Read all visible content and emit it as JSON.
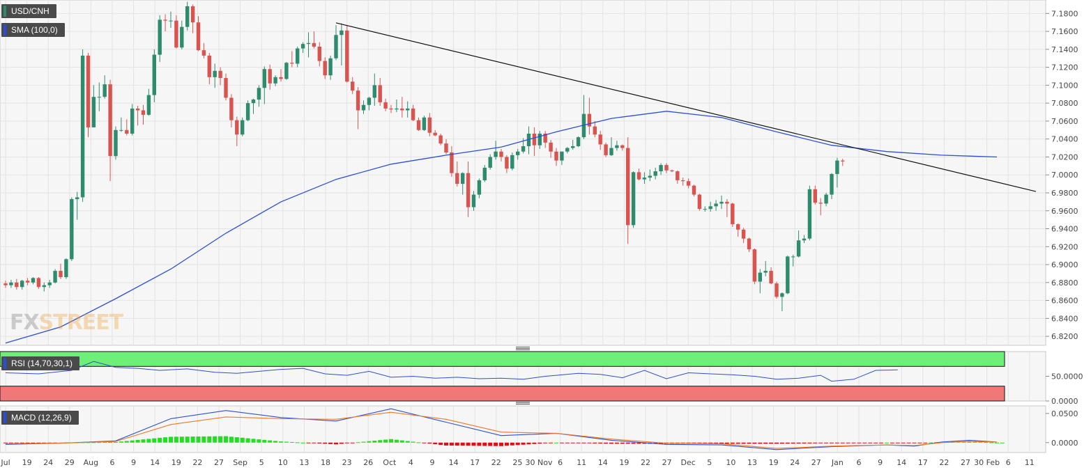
{
  "legend": {
    "symbol": "USD/CNH",
    "sma": "SMA (100,0)",
    "rsi": "RSI (14,70,30,1)",
    "macd": "MACD (12,26,9)"
  },
  "watermark": {
    "part1": "FX",
    "part2": "STREET"
  },
  "colors": {
    "up": "#2e8b6e",
    "down": "#d9534f",
    "sma": "#2a4fd6",
    "rsi_line": "#2a4fd6",
    "overbought": "#6ef078",
    "oversold": "#f07878",
    "macd_line": "#2a4fd6",
    "signal_line": "#f07820",
    "hist_pos": "#22dd22",
    "hist_neg": "#dd1111"
  },
  "chart_data": [
    {
      "type": "candlestick",
      "title": "USD/CNH",
      "ylim": [
        6.81,
        7.195
      ],
      "y_ticks": [
        "7.1800",
        "7.1600",
        "7.1400",
        "7.1200",
        "7.1000",
        "7.0800",
        "7.0600",
        "7.0400",
        "7.0200",
        "7.0000",
        "6.9800",
        "6.9600",
        "6.9400",
        "6.9200",
        "6.9000",
        "6.8800",
        "6.8600",
        "6.8400",
        "6.8200"
      ],
      "x_ticks": [
        "Jul",
        "19",
        "24",
        "29",
        "Aug",
        "6",
        "9",
        "14",
        "19",
        "22",
        "27",
        "Sep",
        "5",
        "10",
        "13",
        "18",
        "23",
        "26",
        "Oct",
        "4",
        "9",
        "14",
        "17",
        "22",
        "25",
        "30 Nov",
        "6",
        "11",
        "14",
        "19",
        "22",
        "27",
        "Dec",
        "5",
        "10",
        "13",
        "19",
        "24",
        "27",
        "Jan",
        "6",
        "9",
        "14",
        "17",
        "22",
        "27",
        "30 Feb",
        "6",
        "11"
      ],
      "candles": [
        [
          6.879,
          6.882,
          6.874,
          6.877
        ],
        [
          6.877,
          6.883,
          6.874,
          6.88
        ],
        [
          6.88,
          6.884,
          6.872,
          6.875
        ],
        [
          6.875,
          6.883,
          6.872,
          6.882
        ],
        [
          6.882,
          6.885,
          6.877,
          6.88
        ],
        [
          6.88,
          6.886,
          6.878,
          6.885
        ],
        [
          6.885,
          6.886,
          6.873,
          6.875
        ],
        [
          6.875,
          6.88,
          6.87,
          6.877
        ],
        [
          6.877,
          6.883,
          6.874,
          6.88
        ],
        [
          6.88,
          6.895,
          6.879,
          6.893
        ],
        [
          6.893,
          6.901,
          6.884,
          6.886
        ],
        [
          6.886,
          6.907,
          6.884,
          6.906
        ],
        [
          6.906,
          6.975,
          6.904,
          6.973
        ],
        [
          6.973,
          6.981,
          6.95,
          6.975
        ],
        [
          6.975,
          7.14,
          6.97,
          7.133
        ],
        [
          7.133,
          7.136,
          7.042,
          7.053
        ],
        [
          7.053,
          7.1,
          7.053,
          7.087
        ],
        [
          7.087,
          7.103,
          7.071,
          7.087
        ],
        [
          7.087,
          7.111,
          7.085,
          7.101
        ],
        [
          7.101,
          7.106,
          6.993,
          7.021
        ],
        [
          7.021,
          7.054,
          7.017,
          7.05
        ],
        [
          7.05,
          7.064,
          7.048,
          7.05
        ],
        [
          7.05,
          7.062,
          7.044,
          7.046
        ],
        [
          7.046,
          7.079,
          7.044,
          7.074
        ],
        [
          7.074,
          7.077,
          7.055,
          7.072
        ],
        [
          7.072,
          7.078,
          7.056,
          7.067
        ],
        [
          7.067,
          7.096,
          7.066,
          7.089
        ],
        [
          7.089,
          7.14,
          7.081,
          7.134
        ],
        [
          7.134,
          7.178,
          7.126,
          7.173
        ],
        [
          7.173,
          7.179,
          7.16,
          7.172
        ],
        [
          7.172,
          7.182,
          7.164,
          7.172
        ],
        [
          7.172,
          7.178,
          7.141,
          7.142
        ],
        [
          7.142,
          7.172,
          7.14,
          7.165
        ],
        [
          7.165,
          7.193,
          7.161,
          7.188
        ],
        [
          7.188,
          7.19,
          7.158,
          7.17
        ],
        [
          7.17,
          7.177,
          7.138,
          7.139
        ],
        [
          7.139,
          7.147,
          7.13,
          7.133
        ],
        [
          7.133,
          7.136,
          7.101,
          7.109
        ],
        [
          7.109,
          7.124,
          7.097,
          7.116
        ],
        [
          7.116,
          7.12,
          7.1,
          7.108
        ],
        [
          7.108,
          7.113,
          7.083,
          7.086
        ],
        [
          7.086,
          7.09,
          7.053,
          7.061
        ],
        [
          7.061,
          7.065,
          7.032,
          7.045
        ],
        [
          7.045,
          7.064,
          7.043,
          7.061
        ],
        [
          7.061,
          7.083,
          7.06,
          7.08
        ],
        [
          7.08,
          7.085,
          7.068,
          7.084
        ],
        [
          7.084,
          7.1,
          7.076,
          7.097
        ],
        [
          7.097,
          7.121,
          7.079,
          7.118
        ],
        [
          7.118,
          7.123,
          7.095,
          7.102
        ],
        [
          7.102,
          7.111,
          7.099,
          7.109
        ],
        [
          7.109,
          7.118,
          7.104,
          7.107
        ],
        [
          7.107,
          7.126,
          7.106,
          7.125
        ],
        [
          7.125,
          7.138,
          7.12,
          7.124
        ],
        [
          7.124,
          7.143,
          7.12,
          7.141
        ],
        [
          7.141,
          7.148,
          7.136,
          7.146
        ],
        [
          7.146,
          7.159,
          7.131,
          7.147
        ],
        [
          7.147,
          7.16,
          7.141,
          7.143
        ],
        [
          7.143,
          7.148,
          7.121,
          7.127
        ],
        [
          7.127,
          7.131,
          7.107,
          7.111
        ],
        [
          7.111,
          7.133,
          7.106,
          7.13
        ],
        [
          7.13,
          7.167,
          7.128,
          7.156
        ],
        [
          7.156,
          7.169,
          7.122,
          7.161
        ],
        [
          7.161,
          7.167,
          7.103,
          7.104
        ],
        [
          7.104,
          7.109,
          7.09,
          7.094
        ],
        [
          7.094,
          7.098,
          7.051,
          7.072
        ],
        [
          7.072,
          7.083,
          7.068,
          7.078
        ],
        [
          7.078,
          7.087,
          7.072,
          7.086
        ],
        [
          7.086,
          7.113,
          7.077,
          7.1
        ],
        [
          7.1,
          7.108,
          7.077,
          7.081
        ],
        [
          7.081,
          7.085,
          7.071,
          7.074
        ],
        [
          7.074,
          7.078,
          7.069,
          7.073
        ],
        [
          7.073,
          7.084,
          7.07,
          7.074
        ],
        [
          7.074,
          7.087,
          7.064,
          7.072
        ],
        [
          7.072,
          7.082,
          7.064,
          7.074
        ],
        [
          7.074,
          7.078,
          7.06,
          7.061
        ],
        [
          7.061,
          7.064,
          7.049,
          7.05
        ],
        [
          7.05,
          7.066,
          7.049,
          7.064
        ],
        [
          7.064,
          7.069,
          7.043,
          7.047
        ],
        [
          7.047,
          7.05,
          7.043,
          7.044
        ],
        [
          7.044,
          7.046,
          7.033,
          7.035
        ],
        [
          7.035,
          7.04,
          7.023,
          7.025
        ],
        [
          7.025,
          7.032,
          6.998,
          7.002
        ],
        [
          7.002,
          7.015,
          6.987,
          6.99
        ],
        [
          6.99,
          7.003,
          6.978,
          7.002
        ],
        [
          7.002,
          7.015,
          6.953,
          6.964
        ],
        [
          6.964,
          6.982,
          6.96,
          6.978
        ],
        [
          6.978,
          6.996,
          6.974,
          6.994
        ],
        [
          6.994,
          7.011,
          6.992,
          7.008
        ],
        [
          7.008,
          7.023,
          7.006,
          7.02
        ],
        [
          7.02,
          7.038,
          7.017,
          7.026
        ],
        [
          7.026,
          7.029,
          7.015,
          7.02
        ],
        [
          7.02,
          7.022,
          7.002,
          7.007
        ],
        [
          7.007,
          7.025,
          7.005,
          7.022
        ],
        [
          7.022,
          7.029,
          7.017,
          7.026
        ],
        [
          7.026,
          7.041,
          7.024,
          7.032
        ],
        [
          7.032,
          7.054,
          7.023,
          7.046
        ],
        [
          7.046,
          7.053,
          7.021,
          7.033
        ],
        [
          7.033,
          7.049,
          7.029,
          7.046
        ],
        [
          7.046,
          7.049,
          7.03,
          7.036
        ],
        [
          7.036,
          7.039,
          7.019,
          7.026
        ],
        [
          7.026,
          7.03,
          7.01,
          7.016
        ],
        [
          7.016,
          7.026,
          7.011,
          7.026
        ],
        [
          7.026,
          7.031,
          7.024,
          7.03
        ],
        [
          7.03,
          7.039,
          7.028,
          7.032
        ],
        [
          7.032,
          7.043,
          7.031,
          7.042
        ],
        [
          7.042,
          7.089,
          7.04,
          7.068
        ],
        [
          7.068,
          7.086,
          7.045,
          7.054
        ],
        [
          7.054,
          7.06,
          7.042,
          7.045
        ],
        [
          7.045,
          7.049,
          7.028,
          7.034
        ],
        [
          7.034,
          7.036,
          7.02,
          7.022
        ],
        [
          7.022,
          7.042,
          7.021,
          7.03
        ],
        [
          7.03,
          7.038,
          7.027,
          7.033
        ],
        [
          7.033,
          7.034,
          7.027,
          7.03
        ],
        [
          7.03,
          7.042,
          6.923,
          6.944
        ],
        [
          6.944,
          7.004,
          6.941,
          7.003
        ],
        [
          7.003,
          7.007,
          6.994,
          6.995
        ],
        [
          6.995,
          7.003,
          6.99,
          6.997
        ],
        [
          6.997,
          7.006,
          6.993,
          6.999
        ],
        [
          6.999,
          7.008,
          6.995,
          7.004
        ],
        [
          7.004,
          7.013,
          7.0,
          7.011
        ],
        [
          7.011,
          7.013,
          7.002,
          7.005
        ],
        [
          7.005,
          7.006,
          7.003,
          7.004
        ],
        [
          7.004,
          7.005,
          6.99,
          6.994
        ],
        [
          6.994,
          6.997,
          6.988,
          6.993
        ],
        [
          6.993,
          6.996,
          6.985,
          6.988
        ],
        [
          6.988,
          6.989,
          6.976,
          6.978
        ],
        [
          6.978,
          6.979,
          6.96,
          6.962
        ],
        [
          6.962,
          6.965,
          6.959,
          6.962
        ],
        [
          6.962,
          6.97,
          6.959,
          6.965
        ],
        [
          6.965,
          6.972,
          6.96,
          6.968
        ],
        [
          6.968,
          6.977,
          6.962,
          6.97
        ],
        [
          6.97,
          6.973,
          6.953,
          6.968
        ],
        [
          6.968,
          6.969,
          6.942,
          6.945
        ],
        [
          6.945,
          6.946,
          6.931,
          6.939
        ],
        [
          6.939,
          6.941,
          6.924,
          6.929
        ],
        [
          6.929,
          6.93,
          6.914,
          6.917
        ],
        [
          6.917,
          6.918,
          6.878,
          6.881
        ],
        [
          6.881,
          6.895,
          6.868,
          6.891
        ],
        [
          6.891,
          6.904,
          6.887,
          6.893
        ],
        [
          6.893,
          6.897,
          6.878,
          6.879
        ],
        [
          6.879,
          6.881,
          6.862,
          6.864
        ],
        [
          6.864,
          6.869,
          6.848,
          6.868
        ],
        [
          6.868,
          6.91,
          6.867,
          6.909
        ],
        [
          6.909,
          6.911,
          6.898,
          6.909
        ],
        [
          6.909,
          6.938,
          6.908,
          6.927
        ],
        [
          6.927,
          6.933,
          6.924,
          6.929
        ],
        [
          6.929,
          6.988,
          6.927,
          6.984
        ],
        [
          6.984,
          6.988,
          6.967,
          6.969
        ],
        [
          6.969,
          6.974,
          6.955,
          6.968
        ],
        [
          6.968,
          6.98,
          6.965,
          6.978
        ],
        [
          6.978,
          7.002,
          6.973,
          7.001
        ],
        [
          7.001,
          7.019,
          6.986,
          7.016
        ],
        [
          7.016,
          7.018,
          7.01,
          7.015
        ]
      ]
    },
    {
      "type": "line",
      "title": "SMA (100,0)",
      "x_index": [
        0,
        10,
        20,
        30,
        40,
        50,
        60,
        70,
        80,
        90,
        100,
        110,
        120,
        130,
        140,
        150,
        160,
        170,
        180
      ],
      "values": [
        6.8125,
        6.8305,
        6.862,
        6.895,
        6.935,
        6.97,
        6.995,
        7.012,
        7.022,
        7.031,
        7.048,
        7.063,
        7.071,
        7.064,
        7.048,
        7.033,
        7.026,
        7.022,
        7.02
      ]
    },
    {
      "type": "line",
      "title": "RSI (14,70,30,1)",
      "ylim": [
        0,
        100
      ],
      "y_ticks": [
        "50.0000",
        "0.0000"
      ],
      "bands": {
        "overbought": 70,
        "oversold": 30
      },
      "x_index": [
        0,
        6,
        12,
        16,
        20,
        24,
        28,
        33,
        38,
        42,
        46,
        50,
        54,
        58,
        62,
        66,
        70,
        74,
        78,
        82,
        86,
        90,
        94,
        98,
        100,
        104,
        108,
        112,
        116,
        120,
        124,
        128,
        132,
        136,
        140,
        144,
        148,
        150,
        154,
        158,
        162
      ],
      "values": [
        57,
        55,
        62,
        80,
        68,
        66,
        62,
        65,
        58,
        56,
        60,
        64,
        66,
        55,
        52,
        60,
        48,
        50,
        46,
        48,
        45,
        46,
        44,
        50,
        52,
        56,
        54,
        47,
        62,
        45,
        57,
        55,
        53,
        50,
        44,
        46,
        52,
        40,
        44,
        62,
        63
      ]
    },
    {
      "type": "line",
      "title": "MACD (12,26,9)",
      "ylim": [
        -0.017,
        0.063
      ],
      "y_ticks": [
        "0.0500",
        "0.0000"
      ],
      "x_index": [
        0,
        10,
        20,
        30,
        40,
        50,
        60,
        70,
        80,
        90,
        100,
        110,
        120,
        130,
        140,
        150,
        160,
        165,
        170,
        175,
        180
      ],
      "macd": [
        -0.003,
        -0.001,
        0.003,
        0.041,
        0.055,
        0.043,
        0.037,
        0.058,
        0.035,
        0.012,
        0.016,
        0.004,
        -0.003,
        -0.004,
        -0.012,
        -0.007,
        -0.004,
        -0.006,
        0.001,
        0.004,
        0.001
      ],
      "signal": [
        -0.002,
        -0.001,
        0.002,
        0.031,
        0.044,
        0.041,
        0.04,
        0.052,
        0.04,
        0.018,
        0.016,
        0.006,
        -0.001,
        -0.002,
        -0.01,
        -0.006,
        -0.004,
        -0.005,
        0.0,
        0.002,
        0.001
      ],
      "histogram": [
        -0.001,
        0.0,
        0.001,
        0.01,
        0.011,
        0.002,
        -0.003,
        0.006,
        -0.005,
        -0.006,
        0.0,
        -0.002,
        -0.002,
        -0.002,
        -0.002,
        -0.001,
        0.0,
        -0.001,
        0.001,
        0.002,
        0.0
      ]
    }
  ]
}
